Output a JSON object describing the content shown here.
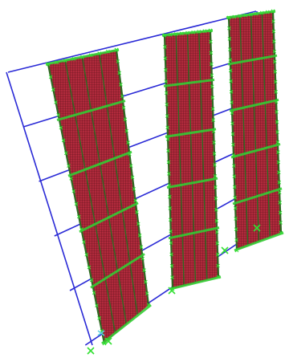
{
  "viewport": {
    "background": "#ffffff"
  },
  "colors": {
    "frame": "#2a2ad6",
    "wall_fill": "#b02a3c",
    "wall_mesh": "#5a0f17",
    "column_line": "#2e6b22",
    "slab_line": "#33cc33",
    "support_marker": "#33e033",
    "end_marker": "#5bd0e0"
  },
  "model": {
    "type": "3d-structural-model",
    "walls": [
      {
        "id": "wall-1"
      },
      {
        "id": "wall-2"
      },
      {
        "id": "wall-3"
      }
    ],
    "frame_levels": 6
  }
}
